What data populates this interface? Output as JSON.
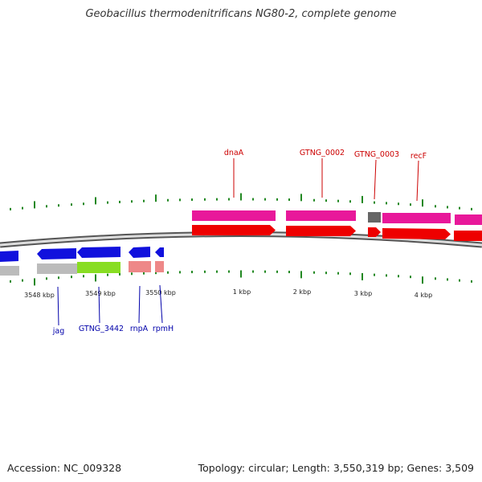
{
  "title": "Geobacillus thermodenitrificans NG80-2, complete genome",
  "footer": {
    "accession": "Accession: NC_009328",
    "topology": "Topology: circular; Length: 3,550,319 bp; Genes: 3,509"
  },
  "colors": {
    "forward_gene": "#e8189a",
    "forward_cds": "#ee0000",
    "reverse_gene": "#1111dd",
    "reverse_cds_grey": "#bbbbbb",
    "reverse_cds_green": "#88dd22",
    "reverse_cds_pink": "#ee8888",
    "pseudo_gene": "#666666",
    "forward_label": "#cc0000",
    "reverse_label": "#0000aa",
    "tick": "#228822",
    "backbone": "#999999"
  },
  "ticks": {
    "labels": [
      "3548 kbp",
      "3549 kbp",
      "3550 kbp",
      "1 kbp",
      "2 kbp",
      "3 kbp",
      "4 kbp"
    ]
  },
  "genes": {
    "forward": [
      "dnaA",
      "GTNG_0002",
      "GTNG_0003",
      "recF"
    ],
    "reverse": [
      "jag",
      "GTNG_3442",
      "rnpA",
      "rpmH"
    ]
  }
}
